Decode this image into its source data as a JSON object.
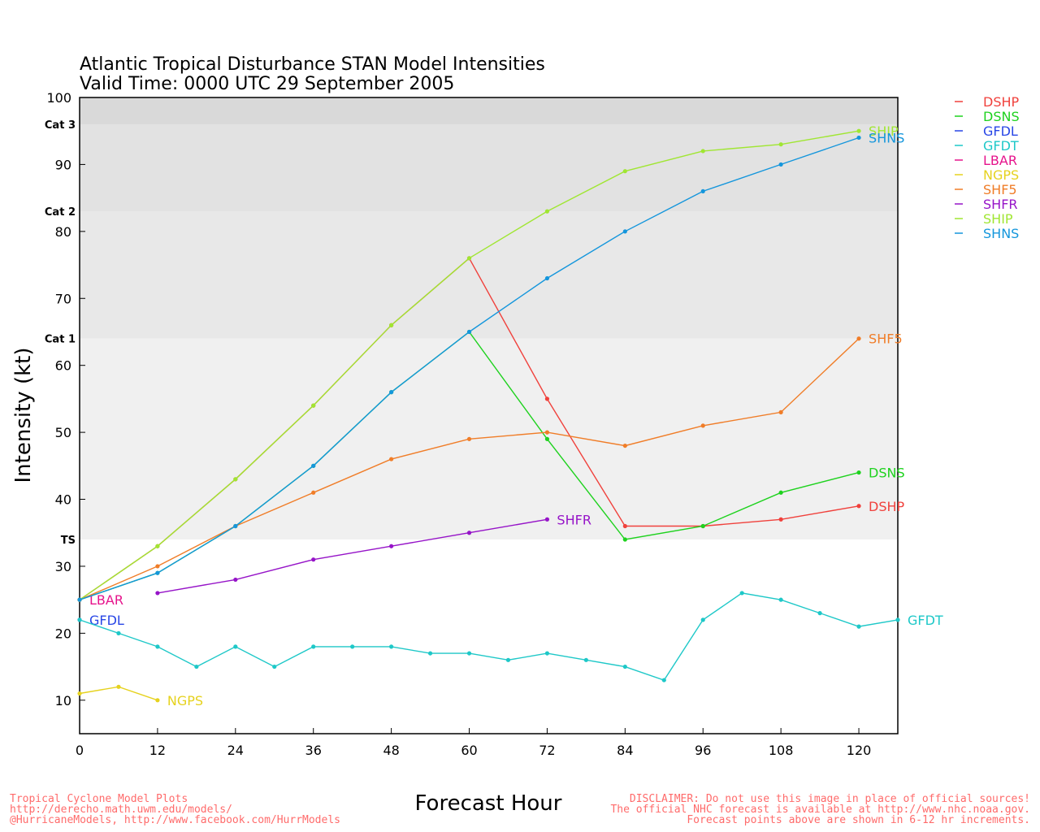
{
  "chart_data": {
    "type": "line",
    "title": "Atlantic Tropical Disturbance STAN Model Intensities",
    "subtitle": "Valid Time: 0000 UTC 29 September 2005",
    "xlabel": "Forecast Hour",
    "ylabel": "Intensity (kt)",
    "xlim": [
      0,
      126
    ],
    "ylim": [
      5,
      100
    ],
    "xticks": [
      0,
      12,
      24,
      36,
      48,
      60,
      72,
      84,
      96,
      108,
      120
    ],
    "yticks": [
      10,
      20,
      30,
      40,
      50,
      60,
      70,
      80,
      90,
      100
    ],
    "bands": [
      {
        "name": "TS",
        "from": 34,
        "to": 64,
        "color": "#f0f0f0"
      },
      {
        "name": "Cat 1",
        "from": 64,
        "to": 83,
        "color": "#e8e8e8"
      },
      {
        "name": "Cat 2",
        "from": 83,
        "to": 96,
        "color": "#e2e2e2"
      },
      {
        "name": "Cat 3",
        "from": 96,
        "to": 100,
        "color": "#d9d9d9"
      }
    ],
    "legend_position": "right",
    "series": [
      {
        "name": "DSHP",
        "color": "#f0413c",
        "label": "DSHP",
        "x": [
          0,
          12,
          24,
          36,
          48,
          60,
          72,
          84,
          96,
          108,
          120
        ],
        "y": [
          25,
          33,
          43,
          54,
          66,
          76,
          55,
          36,
          36,
          37,
          39
        ]
      },
      {
        "name": "DSNS",
        "color": "#1ed21e",
        "label": "DSNS",
        "x": [
          0,
          12,
          24,
          36,
          48,
          60,
          72,
          84,
          96,
          108,
          120
        ],
        "y": [
          25,
          29,
          36,
          45,
          56,
          65,
          49,
          34,
          36,
          41,
          44
        ]
      },
      {
        "name": "GFDL",
        "color": "#2846e6",
        "label": "GFDL",
        "x": [
          0
        ],
        "y": [
          22
        ]
      },
      {
        "name": "GFDT",
        "color": "#1ec8c8",
        "label": "GFDT",
        "x": [
          0,
          6,
          12,
          18,
          24,
          30,
          36,
          42,
          48,
          54,
          60,
          66,
          72,
          78,
          84,
          90,
          96,
          102,
          108,
          114,
          120,
          126
        ],
        "y": [
          22,
          20,
          18,
          15,
          18,
          15,
          18,
          18,
          18,
          17,
          17,
          16,
          17,
          16,
          15,
          13,
          22,
          26,
          25,
          23,
          21,
          22
        ]
      },
      {
        "name": "LBAR",
        "color": "#e6148c",
        "label": "LBAR",
        "x": [
          0
        ],
        "y": [
          25
        ]
      },
      {
        "name": "NGPS",
        "color": "#e6d21e",
        "label": "NGPS",
        "x": [
          0,
          6,
          12
        ],
        "y": [
          11,
          12,
          10
        ]
      },
      {
        "name": "SHF5",
        "color": "#f07d28",
        "label": "SHF5",
        "x": [
          0,
          12,
          24,
          36,
          48,
          60,
          72,
          84,
          96,
          108,
          120
        ],
        "y": [
          25,
          30,
          36,
          41,
          46,
          49,
          50,
          48,
          51,
          53,
          64
        ]
      },
      {
        "name": "SHFR",
        "color": "#9614c8",
        "label": "SHFR",
        "x": [
          12,
          24,
          36,
          48,
          60,
          72
        ],
        "y": [
          26,
          28,
          31,
          33,
          35,
          37
        ]
      },
      {
        "name": "SHIP",
        "color": "#a0e632",
        "label": "SHIP",
        "x": [
          0,
          12,
          24,
          36,
          48,
          60,
          72,
          84,
          96,
          108,
          120
        ],
        "y": [
          25,
          33,
          43,
          54,
          66,
          76,
          83,
          89,
          92,
          93,
          95
        ]
      },
      {
        "name": "SHNS",
        "color": "#1496dc",
        "label": "SHNS",
        "x": [
          0,
          12,
          24,
          36,
          48,
          60,
          72,
          84,
          96,
          108,
          120
        ],
        "y": [
          25,
          29,
          36,
          45,
          56,
          65,
          73,
          80,
          86,
          90,
          94
        ]
      }
    ]
  },
  "footer": {
    "left_line1": "Tropical Cyclone Model Plots",
    "left_line2": "http://derecho.math.uwm.edu/models/",
    "left_line3": "@HurricaneModels, http://www.facebook.com/HurrModels",
    "right_line1": "DISCLAIMER: Do not use this image in place of official sources!",
    "right_line2": "The official NHC forecast is available at http://www.nhc.noaa.gov.",
    "right_line3": "Forecast points above are shown in 6-12 hr increments."
  }
}
